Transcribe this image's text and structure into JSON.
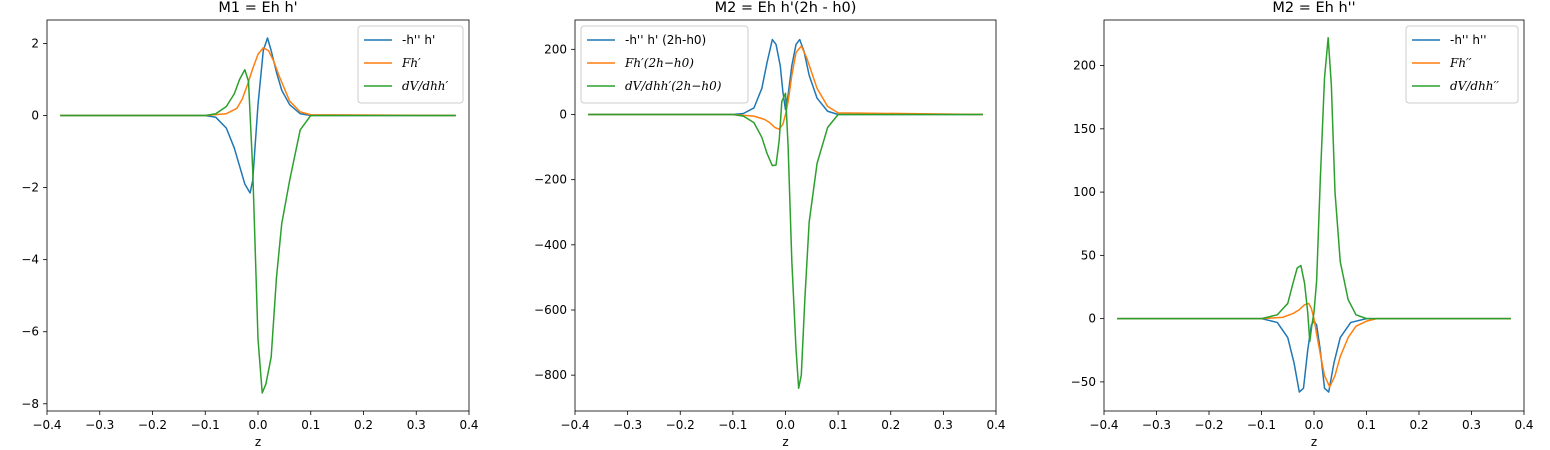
{
  "chart_data": [
    {
      "type": "line",
      "title": "M1 = Eh h'",
      "xlabel": "z",
      "ylabel": "",
      "xlim": [
        -0.4,
        0.4
      ],
      "ylim": [
        -8.2,
        2.65
      ],
      "xticks": [
        -0.4,
        -0.3,
        -0.2,
        -0.1,
        0.0,
        0.1,
        0.2,
        0.3,
        0.4
      ],
      "xtick_labels": [
        "−0.4",
        "−0.3",
        "−0.2",
        "−0.1",
        "0.0",
        "0.1",
        "0.2",
        "0.3",
        "0.4"
      ],
      "yticks": [
        -8,
        -6,
        -4,
        -2,
        0,
        2
      ],
      "ytick_labels": [
        "−8",
        "−6",
        "−4",
        "−2",
        "0",
        "2"
      ],
      "legend": "upper right",
      "series": [
        {
          "name": "-h'' h'",
          "color": "#1f77b4",
          "x": [
            -0.375,
            -0.1,
            -0.08,
            -0.06,
            -0.045,
            -0.035,
            -0.025,
            -0.015,
            -0.01,
            0.0,
            0.01,
            0.018,
            0.025,
            0.035,
            0.045,
            0.06,
            0.08,
            0.1,
            0.375
          ],
          "y": [
            0,
            0,
            -0.05,
            -0.35,
            -0.9,
            -1.4,
            -1.9,
            -2.15,
            -1.8,
            0.3,
            1.8,
            2.15,
            1.8,
            1.2,
            0.7,
            0.3,
            0.05,
            0,
            0
          ]
        },
        {
          "name": "Fh′",
          "color": "#ff7f0e",
          "x": [
            -0.375,
            -0.1,
            -0.06,
            -0.04,
            -0.03,
            -0.02,
            -0.01,
            0.0,
            0.01,
            0.02,
            0.03,
            0.04,
            0.06,
            0.08,
            0.1,
            0.375
          ],
          "y": [
            0,
            0,
            0.05,
            0.2,
            0.45,
            0.85,
            1.3,
            1.7,
            1.88,
            1.8,
            1.5,
            1.1,
            0.4,
            0.1,
            0.02,
            0
          ]
        },
        {
          "name": "dV/dhh′",
          "color": "#2ca02c",
          "x": [
            -0.375,
            -0.1,
            -0.08,
            -0.06,
            -0.045,
            -0.035,
            -0.025,
            -0.018,
            -0.01,
            0.0,
            0.008,
            0.015,
            0.025,
            0.035,
            0.045,
            0.06,
            0.08,
            0.1,
            0.375
          ],
          "y": [
            0,
            0,
            0.05,
            0.25,
            0.6,
            1.0,
            1.27,
            0.95,
            -1.5,
            -6.2,
            -7.7,
            -7.45,
            -6.7,
            -4.5,
            -3.0,
            -1.8,
            -0.4,
            0,
            0
          ]
        }
      ]
    },
    {
      "type": "line",
      "title": "M2 = Eh h'(2h - h0)",
      "xlabel": "z",
      "ylabel": "",
      "xlim": [
        -0.4,
        0.4
      ],
      "ylim": [
        -910,
        290
      ],
      "xticks": [
        -0.4,
        -0.3,
        -0.2,
        -0.1,
        0.0,
        0.1,
        0.2,
        0.3,
        0.4
      ],
      "xtick_labels": [
        "−0.4",
        "−0.3",
        "−0.2",
        "−0.1",
        "0.0",
        "0.1",
        "0.2",
        "0.3",
        "0.4"
      ],
      "yticks": [
        -800,
        -600,
        -400,
        -200,
        0,
        200
      ],
      "ytick_labels": [
        "−800",
        "−600",
        "−400",
        "−200",
        "0",
        "200"
      ],
      "legend": "upper left",
      "series": [
        {
          "name": "-h'' h' (2h-h0)",
          "color": "#1f77b4",
          "x": [
            -0.375,
            -0.1,
            -0.08,
            -0.06,
            -0.045,
            -0.035,
            -0.025,
            -0.018,
            -0.01,
            -0.005,
            0.0,
            0.005,
            0.012,
            0.02,
            0.027,
            0.035,
            0.045,
            0.06,
            0.08,
            0.1,
            0.375
          ],
          "y": [
            0,
            0,
            3,
            20,
            80,
            160,
            230,
            215,
            150,
            70,
            15,
            60,
            150,
            215,
            230,
            195,
            120,
            50,
            10,
            0,
            0
          ]
        },
        {
          "name": "Fh′(2h−h0)",
          "color": "#ff7f0e",
          "x": [
            -0.375,
            -0.1,
            -0.06,
            -0.04,
            -0.03,
            -0.02,
            -0.012,
            -0.005,
            0.0,
            0.005,
            0.012,
            0.02,
            0.03,
            0.04,
            0.06,
            0.08,
            0.1,
            0.375
          ],
          "y": [
            0,
            0,
            -5,
            -15,
            -25,
            -40,
            -45,
            -30,
            0,
            40,
            120,
            190,
            210,
            175,
            80,
            25,
            5,
            0
          ]
        },
        {
          "name": "dV/dhh′(2h−h0)",
          "color": "#2ca02c",
          "x": [
            -0.375,
            -0.1,
            -0.08,
            -0.06,
            -0.045,
            -0.035,
            -0.025,
            -0.018,
            -0.012,
            -0.007,
            0.0,
            0.005,
            0.012,
            0.02,
            0.025,
            0.03,
            0.037,
            0.045,
            0.06,
            0.08,
            0.1,
            0.375
          ],
          "y": [
            0,
            0,
            -5,
            -25,
            -70,
            -120,
            -157,
            -155,
            -80,
            40,
            65,
            -100,
            -450,
            -720,
            -840,
            -800,
            -560,
            -330,
            -150,
            -40,
            0,
            0
          ]
        }
      ]
    },
    {
      "type": "line",
      "title": "M2 = Eh h''",
      "xlabel": "z",
      "ylabel": "",
      "xlim": [
        -0.4,
        0.4
      ],
      "ylim": [
        -73,
        236
      ],
      "xticks": [
        -0.4,
        -0.3,
        -0.2,
        -0.1,
        0.0,
        0.1,
        0.2,
        0.3,
        0.4
      ],
      "xtick_labels": [
        "−0.4",
        "−0.3",
        "−0.2",
        "−0.1",
        "0.0",
        "0.1",
        "0.2",
        "0.3",
        "0.4"
      ],
      "yticks": [
        -50,
        0,
        50,
        100,
        150,
        200
      ],
      "ytick_labels": [
        "−50",
        "0",
        "50",
        "100",
        "150",
        "200"
      ],
      "legend": "upper right",
      "series": [
        {
          "name": "-h'' h''",
          "color": "#1f77b4",
          "x": [
            -0.375,
            -0.1,
            -0.07,
            -0.05,
            -0.038,
            -0.028,
            -0.02,
            -0.012,
            -0.005,
            0.0,
            0.005,
            0.012,
            0.02,
            0.028,
            0.038,
            0.05,
            0.07,
            0.1,
            0.375
          ],
          "y": [
            0,
            0,
            -3,
            -15,
            -35,
            -58,
            -55,
            -25,
            -5,
            -2,
            -5,
            -25,
            -55,
            -58,
            -35,
            -15,
            -3,
            0,
            0
          ]
        },
        {
          "name": "Fh′′",
          "color": "#ff7f0e",
          "x": [
            -0.375,
            -0.1,
            -0.06,
            -0.04,
            -0.028,
            -0.018,
            -0.01,
            -0.005,
            0.0,
            0.005,
            0.012,
            0.02,
            0.03,
            0.04,
            0.05,
            0.065,
            0.08,
            0.1,
            0.12,
            0.375
          ],
          "y": [
            0,
            0,
            1,
            4,
            7,
            11,
            12,
            8,
            0,
            -12,
            -28,
            -45,
            -54,
            -45,
            -30,
            -15,
            -6,
            -2,
            0,
            0
          ]
        },
        {
          "name": "dV/dhh′′",
          "color": "#2ca02c",
          "x": [
            -0.375,
            -0.1,
            -0.07,
            -0.05,
            -0.04,
            -0.032,
            -0.025,
            -0.018,
            -0.012,
            -0.008,
            -0.004,
            0.0,
            0.005,
            0.012,
            0.02,
            0.027,
            0.033,
            0.04,
            0.05,
            0.065,
            0.08,
            0.1,
            0.375
          ],
          "y": [
            0,
            0,
            3,
            12,
            28,
            40,
            42,
            28,
            5,
            -18,
            -5,
            5,
            30,
            110,
            190,
            222,
            185,
            100,
            45,
            15,
            3,
            0,
            0
          ]
        }
      ]
    }
  ]
}
